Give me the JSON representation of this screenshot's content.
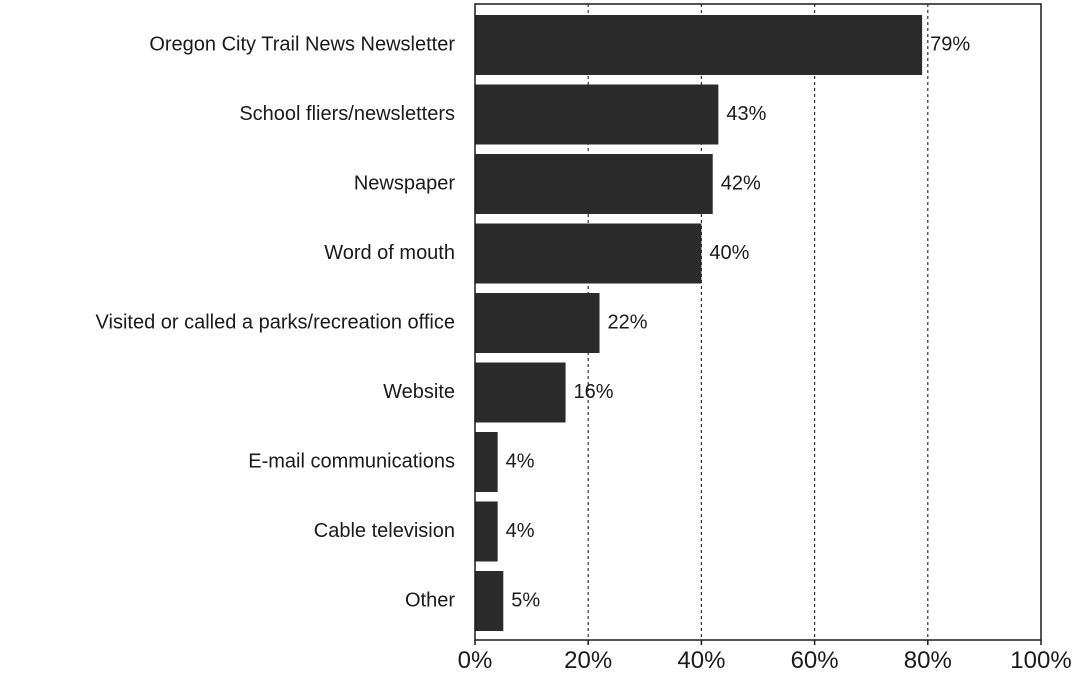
{
  "chart_data": {
    "type": "bar",
    "orientation": "horizontal",
    "categories": [
      "Oregon City Trail News Newsletter",
      "School fliers/newsletters",
      "Newspaper",
      "Word of mouth",
      "Visited or called a parks/recreation office",
      "Website",
      "E-mail communications",
      "Cable television",
      "Other"
    ],
    "values": [
      79,
      43,
      42,
      40,
      22,
      16,
      4,
      4,
      5
    ],
    "value_labels": [
      "79%",
      "43%",
      "42%",
      "40%",
      "22%",
      "16%",
      "4%",
      "4%",
      "5%"
    ],
    "xlim": [
      0,
      100
    ],
    "x_ticks": [
      0,
      20,
      40,
      60,
      80,
      100
    ],
    "x_tick_labels": [
      "0%",
      "20%",
      "40%",
      "60%",
      "80%",
      "100%"
    ],
    "grid": "vertical dotted",
    "bar_color": "#2b2b2b",
    "title": "",
    "xlabel": "",
    "ylabel": ""
  }
}
